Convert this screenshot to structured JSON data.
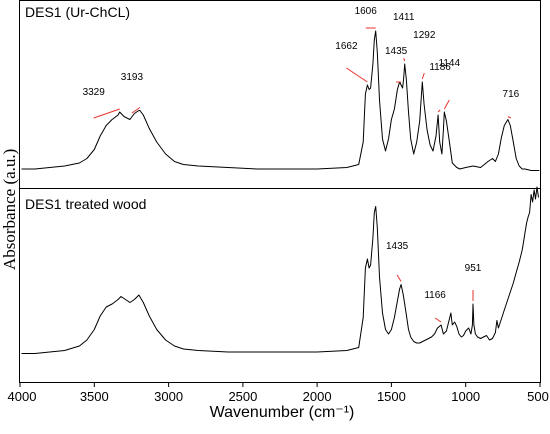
{
  "chart_data": {
    "type": "line",
    "xlabel": "Wavenumber (cm⁻¹)",
    "ylabel": "Absorbance (a.u.)",
    "xlim": [
      4000,
      500
    ],
    "x_ticks": [
      4000,
      3500,
      3000,
      2500,
      2000,
      1500,
      1000,
      500
    ],
    "colors": {
      "annotation_line": "#e8332e",
      "curve": "#000000"
    },
    "panels": [
      {
        "title": "DES1 (Ur-ChCL)",
        "x": [
          3990,
          3900,
          3800,
          3700,
          3600,
          3550,
          3500,
          3460,
          3420,
          3380,
          3340,
          3329,
          3300,
          3260,
          3230,
          3200,
          3193,
          3170,
          3130,
          3080,
          3020,
          2960,
          2900,
          2800,
          2600,
          2400,
          2200,
          2000,
          1800,
          1720,
          1690,
          1675,
          1662,
          1650,
          1640,
          1625,
          1615,
          1606,
          1595,
          1580,
          1560,
          1540,
          1520,
          1500,
          1480,
          1460,
          1445,
          1435,
          1425,
          1418,
          1411,
          1400,
          1385,
          1370,
          1350,
          1330,
          1310,
          1300,
          1292,
          1280,
          1260,
          1240,
          1220,
          1200,
          1186,
          1175,
          1160,
          1150,
          1144,
          1130,
          1110,
          1090,
          1060,
          1040,
          1000,
          950,
          900,
          850,
          820,
          800,
          780,
          760,
          740,
          716,
          700,
          680,
          660,
          640,
          620,
          600,
          560,
          520,
          505
        ],
        "y": [
          0.02,
          0.02,
          0.03,
          0.04,
          0.06,
          0.09,
          0.15,
          0.24,
          0.31,
          0.35,
          0.38,
          0.4,
          0.37,
          0.35,
          0.39,
          0.41,
          0.41,
          0.38,
          0.29,
          0.2,
          0.12,
          0.07,
          0.05,
          0.04,
          0.03,
          0.02,
          0.02,
          0.02,
          0.03,
          0.05,
          0.2,
          0.52,
          0.58,
          0.55,
          0.56,
          0.72,
          0.88,
          0.94,
          0.8,
          0.48,
          0.22,
          0.14,
          0.22,
          0.35,
          0.42,
          0.55,
          0.6,
          0.58,
          0.56,
          0.62,
          0.72,
          0.62,
          0.4,
          0.22,
          0.12,
          0.2,
          0.34,
          0.48,
          0.6,
          0.45,
          0.28,
          0.18,
          0.14,
          0.24,
          0.38,
          0.2,
          0.12,
          0.28,
          0.4,
          0.34,
          0.2,
          0.06,
          0.03,
          0.02,
          0.03,
          0.04,
          0.03,
          0.07,
          0.09,
          0.07,
          0.12,
          0.23,
          0.31,
          0.35,
          0.31,
          0.2,
          0.09,
          0.04,
          0.02,
          0.02,
          0.01,
          0.01,
          0.01
        ],
        "annotations": [
          {
            "label": "3329",
            "wavenumber": 3329
          },
          {
            "label": "3193",
            "wavenumber": 3193
          },
          {
            "label": "1662",
            "wavenumber": 1662
          },
          {
            "label": "1606",
            "wavenumber": 1606
          },
          {
            "label": "1435",
            "wavenumber": 1435
          },
          {
            "label": "1411",
            "wavenumber": 1411
          },
          {
            "label": "1292",
            "wavenumber": 1292
          },
          {
            "label": "1186",
            "wavenumber": 1186
          },
          {
            "label": "1144",
            "wavenumber": 1144
          },
          {
            "label": "716",
            "wavenumber": 716
          }
        ]
      },
      {
        "title": "DES1 treated wood",
        "x": [
          3990,
          3900,
          3800,
          3700,
          3600,
          3550,
          3500,
          3460,
          3420,
          3380,
          3340,
          3320,
          3290,
          3260,
          3230,
          3200,
          3170,
          3130,
          3080,
          3020,
          2960,
          2900,
          2800,
          2600,
          2400,
          2200,
          2000,
          1800,
          1720,
          1690,
          1675,
          1662,
          1650,
          1640,
          1625,
          1615,
          1606,
          1595,
          1580,
          1560,
          1540,
          1520,
          1500,
          1480,
          1460,
          1445,
          1435,
          1420,
          1400,
          1385,
          1370,
          1350,
          1330,
          1310,
          1290,
          1270,
          1250,
          1230,
          1210,
          1190,
          1166,
          1150,
          1130,
          1110,
          1100,
          1090,
          1075,
          1060,
          1045,
          1030,
          1015,
          1000,
          980,
          965,
          955,
          951,
          945,
          935,
          920,
          900,
          880,
          860,
          840,
          820,
          800,
          790,
          780,
          760,
          740,
          720,
          700,
          680,
          660,
          640,
          620,
          610,
          600,
          590,
          580,
          570,
          560,
          550,
          540,
          530,
          520,
          510
        ],
        "y": [
          0.01,
          0.01,
          0.02,
          0.03,
          0.06,
          0.1,
          0.17,
          0.26,
          0.32,
          0.34,
          0.37,
          0.39,
          0.37,
          0.35,
          0.37,
          0.4,
          0.35,
          0.26,
          0.17,
          0.1,
          0.06,
          0.04,
          0.03,
          0.02,
          0.02,
          0.02,
          0.02,
          0.03,
          0.05,
          0.25,
          0.58,
          0.64,
          0.58,
          0.6,
          0.78,
          0.95,
          0.99,
          0.85,
          0.52,
          0.28,
          0.17,
          0.14,
          0.17,
          0.25,
          0.36,
          0.44,
          0.47,
          0.4,
          0.27,
          0.17,
          0.12,
          0.09,
          0.08,
          0.08,
          0.09,
          0.1,
          0.11,
          0.12,
          0.14,
          0.18,
          0.2,
          0.14,
          0.16,
          0.24,
          0.28,
          0.2,
          0.22,
          0.19,
          0.14,
          0.12,
          0.13,
          0.16,
          0.18,
          0.14,
          0.2,
          0.34,
          0.2,
          0.14,
          0.12,
          0.11,
          0.12,
          0.13,
          0.1,
          0.11,
          0.15,
          0.23,
          0.18,
          0.24,
          0.3,
          0.36,
          0.42,
          0.48,
          0.55,
          0.62,
          0.7,
          0.76,
          0.82,
          0.88,
          0.92,
          0.95,
          1.07,
          1.02,
          1.1,
          1.04,
          1.12,
          1.05
        ],
        "annotations": [
          {
            "label": "1435",
            "wavenumber": 1435
          },
          {
            "label": "1166",
            "wavenumber": 1166
          },
          {
            "label": "951",
            "wavenumber": 951
          }
        ]
      }
    ]
  }
}
